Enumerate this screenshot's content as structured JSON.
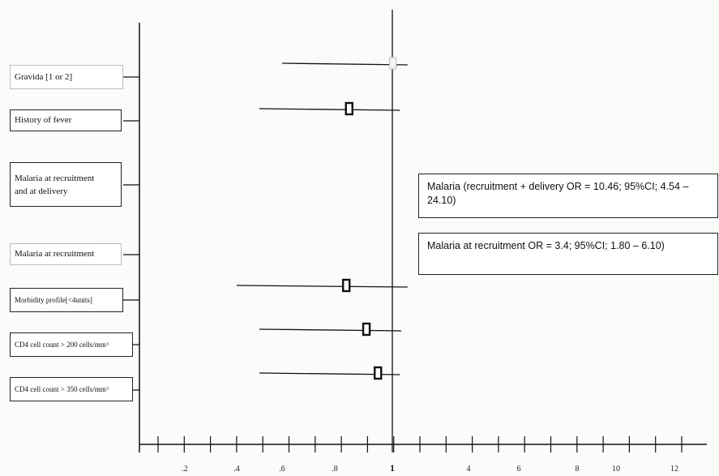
{
  "chart_data": {
    "type": "forest",
    "title": "",
    "xlabel": "",
    "ylabel": "",
    "reference_line": 1,
    "x_ticks": [
      {
        "value": 0.2,
        "label": ".2"
      },
      {
        "value": 0.4,
        "label": ".4"
      },
      {
        "value": 0.6,
        "label": ".6"
      },
      {
        "value": 0.8,
        "label": ".8"
      },
      {
        "value": 1,
        "label": "1"
      },
      {
        "value": 4,
        "label": "4"
      },
      {
        "value": 6,
        "label": "6"
      },
      {
        "value": 8,
        "label": "8"
      },
      {
        "value": 10,
        "label": "10"
      },
      {
        "value": 12,
        "label": "12"
      }
    ],
    "rows": [
      {
        "label": "Gravida [1 or 2]",
        "or": 1.02,
        "ci_low": 0.6,
        "ci_high": 1.6
      },
      {
        "label": "History of fever",
        "or": 0.85,
        "ci_low": 0.5,
        "ci_high": 1.3
      },
      {
        "label": "Malaria at recruitment and at delivery",
        "or": null,
        "ci_low": null,
        "ci_high": null
      },
      {
        "label": "Malaria at recruitment",
        "or": null,
        "ci_low": null,
        "ci_high": null
      },
      {
        "label": "Morbidity profile[<4units]",
        "or": 0.84,
        "ci_low": 0.4,
        "ci_high": 1.6
      },
      {
        "label": "CD4 cell count > 200 cells/mm",
        "label_sup": "3",
        "or": 0.91,
        "ci_low": 0.5,
        "ci_high": 1.35
      },
      {
        "label": "CD4 cell count > 350 cells/mm",
        "label_sup": "3",
        "or": 0.95,
        "ci_low": 0.5,
        "ci_high": 1.3
      }
    ],
    "annotations": [
      "Malaria (recruitment + delivery OR = 10.46; 95%CI; 4.54 – 24.10)",
      "Malaria at recruitment OR = 3.4; 95%CI; 1.80 – 6.10)"
    ]
  }
}
